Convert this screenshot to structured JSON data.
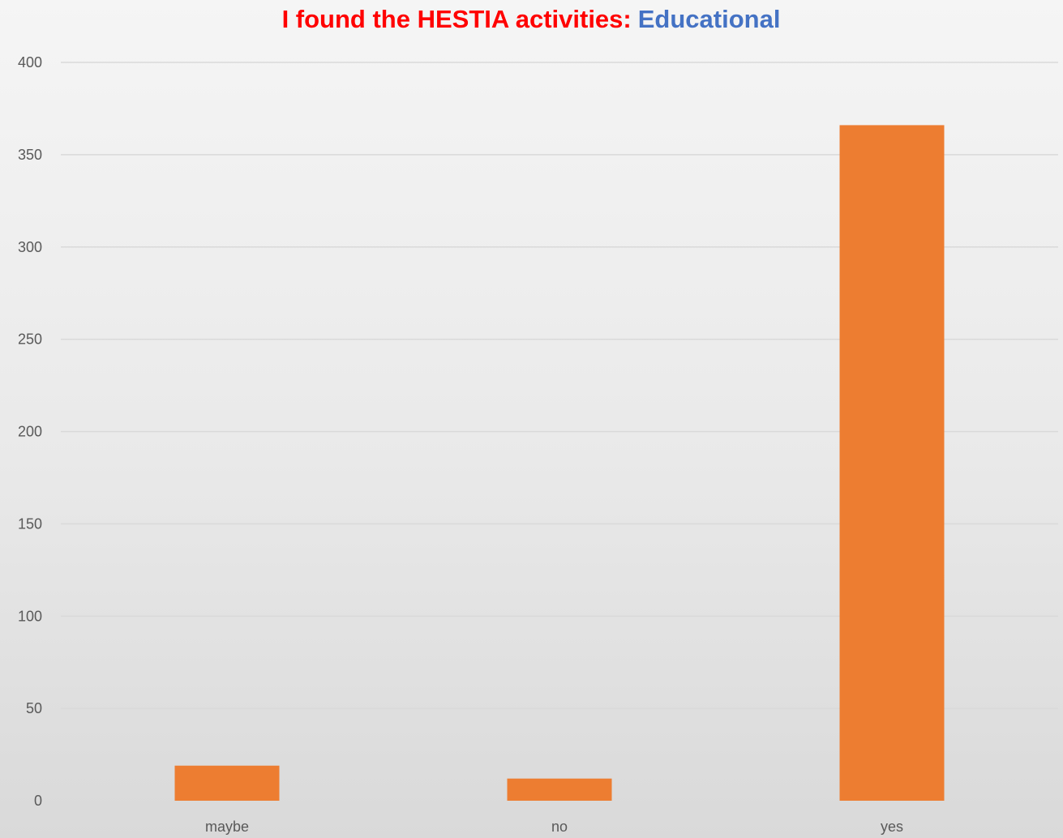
{
  "chart_data": {
    "type": "bar",
    "title_prefix": "I found the HESTIA activities:",
    "title_highlight": "Educational",
    "xlabel": "",
    "ylabel": "",
    "categories": [
      "maybe",
      "no",
      "yes"
    ],
    "series": [
      {
        "values": [
          19,
          12,
          366
        ]
      }
    ],
    "ylim": [
      0,
      400
    ],
    "yticks": [
      0,
      50,
      100,
      150,
      200,
      250,
      300,
      350,
      400
    ],
    "grid": true,
    "legend": "none"
  },
  "colors": {
    "bar": "#ed7d31",
    "title_prefix": "#ff0000",
    "title_highlight": "#4472c4",
    "gridline": "#d9d9d9",
    "tick_label": "#595959"
  }
}
